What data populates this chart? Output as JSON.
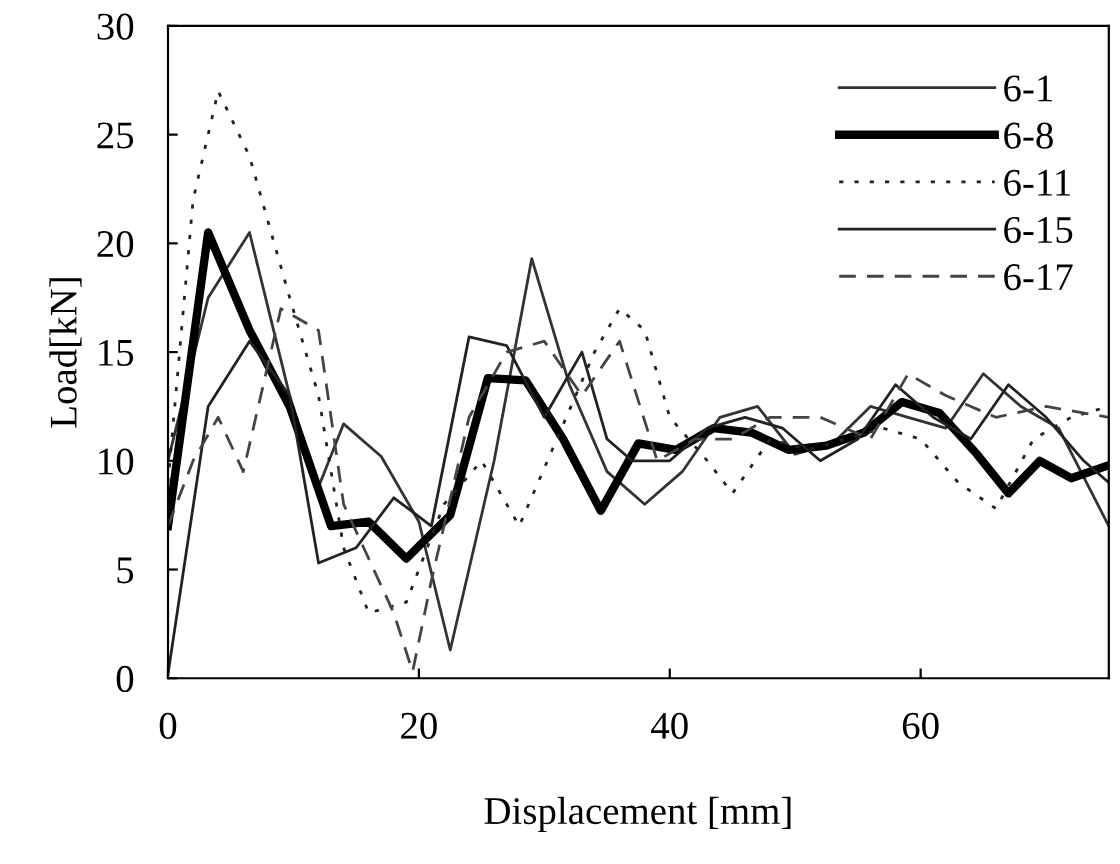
{
  "chart_data": {
    "type": "line",
    "xlabel": "Displacement [mm]",
    "ylabel": "Load[kN]",
    "xlim": [
      0,
      75
    ],
    "xticks": [
      0,
      20,
      40,
      60
    ],
    "ylim": [
      0,
      30
    ],
    "yticks": [
      0,
      5,
      10,
      15,
      20,
      25,
      30
    ],
    "grid": false,
    "legend": "top right",
    "marker": "none",
    "series": [
      {
        "name": "6-1",
        "color": "#333333",
        "line_style": "solid",
        "x": [
          0,
          3.2,
          6.5,
          9.7,
          12,
          14,
          17,
          20,
          22.5,
          26,
          29,
          32,
          35,
          38,
          41,
          44,
          47,
          50,
          53,
          56,
          59,
          62,
          65,
          68,
          71,
          75
        ],
        "values": [
          10,
          17.5,
          20.5,
          13,
          8.8,
          11.7,
          10.2,
          7.2,
          1.3,
          10,
          19.3,
          13.5,
          9.5,
          8,
          9.5,
          12,
          12.5,
          10.3,
          10.8,
          12.5,
          12,
          11.5,
          14,
          12.5,
          11.5,
          7
        ]
      },
      {
        "name": "6-8",
        "color": "#000000",
        "line_style": "solid",
        "x": [
          0,
          3.2,
          6.5,
          9.7,
          13,
          16,
          19,
          22.5,
          25.5,
          28.5,
          31.5,
          34.5,
          37.5,
          40.5,
          43.5,
          46.5,
          49.5,
          52.5,
          55.5,
          58.5,
          61.5,
          64.5,
          67,
          69.5,
          72,
          75
        ],
        "values": [
          7,
          20.5,
          16,
          12.5,
          7,
          7.2,
          5.5,
          7.5,
          13.8,
          13.7,
          11,
          7.7,
          10.8,
          10.5,
          11.5,
          11.3,
          10.5,
          10.7,
          11.3,
          12.7,
          12.2,
          10.3,
          8.5,
          10,
          9.2,
          9.8
        ]
      },
      {
        "name": "6-11",
        "color": "#222222",
        "line_style": "dotted",
        "x": [
          0,
          2,
          4,
          6.5,
          9.7,
          12,
          14,
          16,
          19,
          22,
          25,
          28,
          31,
          34,
          36,
          38,
          40,
          43,
          45,
          48,
          51,
          54,
          57,
          60,
          63,
          66,
          69,
          72,
          75
        ],
        "values": [
          9,
          22,
          27,
          24,
          17.5,
          13,
          6,
          3,
          3.5,
          8,
          10,
          7,
          11,
          15,
          17,
          16,
          12,
          10,
          8.5,
          11,
          10.5,
          11,
          11.5,
          11,
          9,
          7.8,
          11,
          12,
          12.5
        ]
      },
      {
        "name": "6-15",
        "color": "#222222",
        "line_style": "solid",
        "x": [
          0,
          3.2,
          6.5,
          9.7,
          12,
          15,
          18,
          21,
          24,
          27,
          30,
          33,
          35,
          37,
          40,
          43,
          46,
          49,
          52,
          55,
          58,
          61,
          64,
          67,
          70,
          73,
          75
        ],
        "values": [
          0.2,
          12.5,
          15.5,
          13,
          5.3,
          6,
          8.3,
          7,
          15.7,
          15.3,
          12,
          15,
          11,
          10,
          10,
          11.5,
          12,
          11.5,
          10,
          11,
          13.5,
          12,
          11,
          13.5,
          12,
          10,
          9
        ]
      },
      {
        "name": "6-17",
        "color": "#444444",
        "line_style": "dashed",
        "x": [
          0,
          2,
          4,
          6,
          9,
          12,
          14,
          16,
          18,
          19.5,
          21,
          24,
          27,
          30,
          33,
          36,
          39,
          42,
          45,
          48,
          52,
          56,
          59,
          62,
          66,
          70,
          75
        ],
        "values": [
          7,
          10,
          12,
          9.5,
          17,
          16,
          8,
          5.5,
          3,
          0.3,
          4.5,
          12,
          15,
          15.5,
          13,
          15.5,
          10,
          11,
          11,
          12,
          12,
          11,
          14,
          13,
          12,
          12.5,
          12
        ]
      }
    ]
  }
}
